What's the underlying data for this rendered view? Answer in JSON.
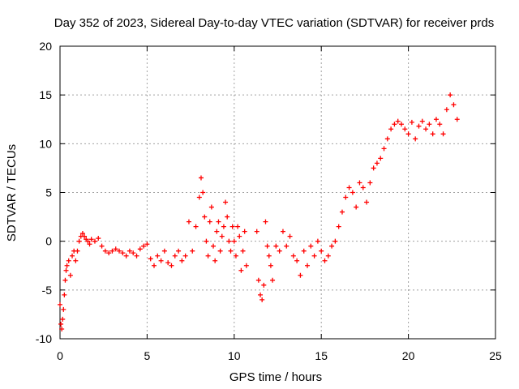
{
  "chart_data": {
    "type": "scatter",
    "title": "Day 352 of 2023, Sidereal Day-to-day VTEC variation (SDTVAR) for receiver prds",
    "xlabel": "GPS time / hours",
    "ylabel": "SDTVAR / TECUs",
    "xlim": [
      0,
      25
    ],
    "ylim": [
      -10,
      20
    ],
    "xticks": [
      0,
      5,
      10,
      15,
      20,
      25
    ],
    "yticks": [
      -10,
      -5,
      0,
      5,
      10,
      15,
      20
    ],
    "xtick_labels": [
      "0",
      "5",
      "10",
      "15",
      "20",
      "25"
    ],
    "ytick_labels": [
      "-10",
      "-5",
      "0",
      "5",
      "10",
      "15",
      "20"
    ],
    "grid": true,
    "marker": "+",
    "color": "#ff0000",
    "series": [
      {
        "name": "SDTVAR",
        "x": [
          0.0,
          0.05,
          0.1,
          0.15,
          0.2,
          0.25,
          0.3,
          0.35,
          0.4,
          0.5,
          0.6,
          0.7,
          0.8,
          0.9,
          1.0,
          1.1,
          1.2,
          1.3,
          1.4,
          1.5,
          1.6,
          1.7,
          1.8,
          2.0,
          2.2,
          2.4,
          2.6,
          2.8,
          3.0,
          3.2,
          3.4,
          3.6,
          3.8,
          4.0,
          4.2,
          4.4,
          4.6,
          4.8,
          5.0,
          5.2,
          5.4,
          5.6,
          5.8,
          6.0,
          6.2,
          6.4,
          6.6,
          6.8,
          7.0,
          7.2,
          7.4,
          7.6,
          7.8,
          8.0,
          8.1,
          8.2,
          8.3,
          8.4,
          8.5,
          8.6,
          8.7,
          8.8,
          8.9,
          9.0,
          9.1,
          9.2,
          9.3,
          9.4,
          9.5,
          9.6,
          9.7,
          9.8,
          9.9,
          10.0,
          10.1,
          10.2,
          10.3,
          10.4,
          10.5,
          10.6,
          10.7,
          11.3,
          11.4,
          11.5,
          11.6,
          11.7,
          11.8,
          11.9,
          12.0,
          12.1,
          12.2,
          12.4,
          12.6,
          12.8,
          13.0,
          13.2,
          13.4,
          13.6,
          13.8,
          14.0,
          14.2,
          14.4,
          14.6,
          14.8,
          15.0,
          15.2,
          15.4,
          15.6,
          15.8,
          16.0,
          16.2,
          16.4,
          16.6,
          16.8,
          17.0,
          17.2,
          17.4,
          17.6,
          17.8,
          18.0,
          18.2,
          18.4,
          18.6,
          18.8,
          19.0,
          19.2,
          19.4,
          19.6,
          19.8,
          20.0,
          20.2,
          20.4,
          20.6,
          20.8,
          21.0,
          21.2,
          21.4,
          21.6,
          21.8,
          22.0,
          22.2,
          22.4,
          22.6,
          22.8
        ],
        "y": [
          -6.5,
          -8.5,
          -9.0,
          -8.0,
          -7.0,
          -5.5,
          -4.0,
          -3.0,
          -2.5,
          -2.0,
          -3.5,
          -1.5,
          -1.0,
          -2.0,
          -1.0,
          0.0,
          0.5,
          0.8,
          0.5,
          0.2,
          0.0,
          -0.3,
          0.2,
          0.0,
          0.3,
          -0.5,
          -1.0,
          -1.2,
          -1.0,
          -0.8,
          -1.0,
          -1.2,
          -1.5,
          -1.0,
          -1.2,
          -1.5,
          -0.8,
          -0.5,
          -0.3,
          -1.8,
          -2.5,
          -1.5,
          -2.0,
          -1.0,
          -2.2,
          -2.5,
          -1.5,
          -1.0,
          -2.0,
          -1.5,
          2.0,
          -1.0,
          1.5,
          4.5,
          6.5,
          5.0,
          2.5,
          0.0,
          -1.5,
          2.0,
          3.5,
          -0.5,
          -2.0,
          1.0,
          2.0,
          -1.0,
          0.5,
          1.5,
          4.0,
          2.5,
          0.0,
          -1.0,
          1.5,
          0.0,
          -1.5,
          1.5,
          0.5,
          -3.0,
          -1.0,
          1.0,
          -2.5,
          1.0,
          -4.0,
          -5.5,
          -6.0,
          -4.5,
          2.0,
          -0.5,
          -1.5,
          -2.5,
          -4.0,
          -0.5,
          -1.0,
          1.0,
          -0.5,
          0.5,
          -1.5,
          -2.0,
          -3.5,
          -1.0,
          -2.5,
          -0.5,
          -1.5,
          0.0,
          -1.0,
          -2.0,
          -1.5,
          -0.5,
          0.0,
          1.5,
          3.0,
          4.5,
          5.5,
          5.0,
          3.5,
          6.0,
          5.5,
          4.0,
          6.0,
          7.5,
          8.0,
          8.5,
          9.5,
          10.5,
          11.5,
          12.0,
          12.3,
          12.0,
          11.5,
          11.0,
          12.2,
          10.5,
          11.8,
          12.3,
          11.5,
          12.0,
          11.0,
          12.5,
          12.0,
          11.0,
          13.5,
          15.0,
          14.0,
          12.5
        ]
      }
    ]
  }
}
